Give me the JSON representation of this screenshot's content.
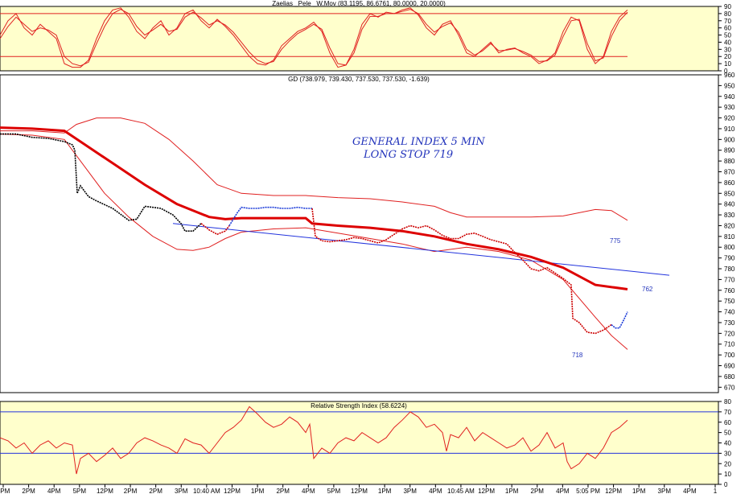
{
  "colors": {
    "panel_bg": "#ffffcc",
    "price_up": "#000000",
    "price_alt": "#1a3ad8",
    "price_red": "#cc0000",
    "band": "#e02020",
    "ma": "#dd0000",
    "trendline": "#2233dd",
    "level_line": "#2233dd",
    "annotation": "#2233bb"
  },
  "panels": {
    "stoch": {
      "title": "Zaelias _Pele _W.Mov (83.1195, 86.6761, 80.0000, 20.0000)",
      "ylim": [
        0,
        90
      ],
      "ticks": [
        "0",
        "10",
        "20",
        "30",
        "40",
        "50",
        "60",
        "70",
        "80",
        "90"
      ]
    },
    "price": {
      "title": "GD (738.979, 739.430, 737.530, 737.530, -1.639)",
      "ylim": [
        665,
        960
      ],
      "ticks": [
        "670",
        "680",
        "690",
        "700",
        "710",
        "720",
        "730",
        "740",
        "750",
        "760",
        "770",
        "780",
        "790",
        "800",
        "810",
        "820",
        "830",
        "840",
        "850",
        "860",
        "870",
        "880",
        "890",
        "900",
        "910",
        "920",
        "930",
        "940",
        "950",
        "960"
      ]
    },
    "rsi": {
      "title": "Relative Strength Index (58.6224)",
      "ylim": [
        0,
        80
      ],
      "ticks": [
        "0",
        "10",
        "20",
        "30",
        "40",
        "50",
        "60",
        "70",
        "80"
      ]
    }
  },
  "annotations": {
    "line1": "GENERAL INDEX 5 MIN",
    "line2": "LONG STOP 719",
    "label_775": "775",
    "label_762": "762",
    "label_718": "718"
  },
  "x_axis_labels": [
    "2PM",
    "2PM",
    "4PM",
    "5PM",
    "12PM",
    "2PM",
    "2PM",
    "3PM",
    "10:40 AM",
    "12PM",
    "1PM",
    "2PM",
    "4PM",
    "5PM",
    "12PM",
    "1PM",
    "3PM",
    "4PM",
    "10:45 AM",
    "12PM",
    "1PM",
    "2PM",
    "4PM",
    "5:05 PM",
    "12PM",
    "1PM",
    "3PM",
    "4PM",
    "1"
  ],
  "chart_data": [
    {
      "type": "line",
      "title": "Zaelias _Pele _W.Mov (83.1195, 86.6761, 80.0000, 20.0000)",
      "ylim": [
        0,
        90
      ],
      "levels": [
        80,
        20
      ],
      "x": [
        0,
        10,
        20,
        30,
        40,
        50,
        60,
        70,
        80,
        90,
        100,
        110,
        120,
        130,
        140,
        150,
        160,
        170,
        180,
        190,
        200,
        210,
        220,
        230,
        240,
        250,
        260,
        270,
        280,
        290,
        300,
        310,
        320,
        330,
        340,
        350,
        360,
        370,
        380,
        390,
        400,
        410,
        420,
        430,
        440,
        450,
        460,
        470,
        480,
        490,
        500,
        510,
        520,
        530,
        540,
        550,
        560,
        570,
        580,
        590,
        600,
        610,
        620,
        630,
        640,
        650,
        660,
        670,
        680,
        690,
        700,
        710,
        720,
        730,
        740,
        750,
        760,
        770,
        780
      ],
      "series": [
        {
          "values": [
            50,
            70,
            80,
            60,
            50,
            65,
            55,
            45,
            10,
            5,
            5,
            15,
            45,
            70,
            85,
            88,
            75,
            55,
            45,
            60,
            70,
            50,
            60,
            80,
            85,
            70,
            60,
            72,
            62,
            50,
            35,
            20,
            10,
            8,
            15,
            35,
            45,
            55,
            60,
            68,
            55,
            25,
            5,
            8,
            30,
            65,
            80,
            75,
            82,
            80,
            85,
            88,
            78,
            60,
            50,
            65,
            70,
            50,
            25,
            20,
            30,
            40,
            25,
            30,
            32,
            25,
            20,
            10,
            15,
            25,
            55,
            75,
            70,
            30,
            10,
            20,
            55,
            75,
            85
          ]
        },
        {
          "values": [
            45,
            62,
            75,
            65,
            55,
            60,
            57,
            50,
            20,
            10,
            7,
            12,
            38,
            62,
            80,
            86,
            80,
            62,
            50,
            57,
            65,
            55,
            58,
            75,
            82,
            74,
            64,
            70,
            64,
            54,
            40,
            26,
            15,
            10,
            13,
            30,
            42,
            52,
            58,
            65,
            58,
            32,
            10,
            8,
            25,
            58,
            76,
            76,
            80,
            80,
            83,
            86,
            80,
            65,
            54,
            62,
            67,
            54,
            30,
            22,
            28,
            38,
            28,
            29,
            31,
            27,
            22,
            13,
            14,
            22,
            48,
            70,
            72,
            38,
            14,
            18,
            48,
            70,
            82
          ]
        }
      ]
    },
    {
      "type": "line",
      "title": "GD (738.979, 739.430, 737.530, 737.530, -1.639)",
      "ylim": [
        665,
        960
      ],
      "annotations": [
        "GENERAL INDEX 5 MIN",
        "LONG STOP 719",
        "775",
        "762",
        "718"
      ],
      "price": {
        "x": [
          0,
          20,
          40,
          60,
          80,
          90,
          93,
          96,
          100,
          110,
          120,
          140,
          160,
          170,
          180,
          200,
          215,
          225,
          230,
          240,
          250,
          260,
          270,
          280,
          285,
          290,
          295,
          300,
          310,
          320,
          330,
          340,
          350,
          360,
          370,
          380,
          385,
          388,
          392,
          400,
          410,
          420,
          430,
          440,
          450,
          460,
          470,
          480,
          490,
          500,
          510,
          520,
          530,
          540,
          550,
          560,
          570,
          580,
          590,
          600,
          610,
          620,
          630,
          640,
          650,
          660,
          670,
          680,
          690,
          700,
          705,
          710,
          712,
          720,
          730,
          740,
          750,
          760,
          765,
          770,
          775,
          780
        ],
        "values": [
          905,
          905,
          902,
          901,
          898,
          895,
          890,
          850,
          857,
          847,
          843,
          836,
          825,
          826,
          838,
          836,
          830,
          822,
          815,
          815,
          822,
          816,
          812,
          815,
          820,
          826,
          832,
          837,
          836,
          836,
          837,
          837,
          836,
          836,
          837,
          836,
          836,
          836,
          810,
          806,
          805,
          806,
          807,
          809,
          808,
          806,
          804,
          807,
          812,
          817,
          820,
          818,
          820,
          816,
          811,
          808,
          808,
          812,
          813,
          810,
          807,
          805,
          803,
          795,
          788,
          780,
          778,
          781,
          776,
          771,
          768,
          765,
          734,
          730,
          721,
          720,
          723,
          728,
          725,
          725,
          732,
          740
        ]
      },
      "moving_average": {
        "x": [
          0,
          40,
          80,
          100,
          140,
          180,
          220,
          260,
          280,
          300,
          340,
          380,
          388,
          420,
          460,
          500,
          540,
          580,
          620,
          660,
          700,
          740,
          780
        ],
        "values": [
          911,
          910,
          908,
          898,
          878,
          858,
          840,
          828,
          826,
          827,
          827,
          827,
          822,
          820,
          818,
          815,
          810,
          803,
          798,
          791,
          781,
          765,
          761
        ]
      },
      "upper_band": {
        "x": [
          0,
          40,
          80,
          95,
          120,
          150,
          180,
          210,
          240,
          270,
          300,
          340,
          380,
          420,
          460,
          500,
          540,
          560,
          580,
          620,
          660,
          700,
          740,
          760,
          780
        ],
        "values": [
          908,
          908,
          906,
          914,
          920,
          920,
          915,
          900,
          880,
          858,
          850,
          848,
          848,
          846,
          845,
          842,
          838,
          832,
          828,
          828,
          828,
          829,
          835,
          834,
          825
        ]
      },
      "lower_band": {
        "x": [
          0,
          40,
          80,
          100,
          130,
          160,
          190,
          220,
          240,
          260,
          280,
          300,
          340,
          380,
          420,
          460,
          500,
          540,
          580,
          620,
          660,
          700,
          740,
          760,
          780
        ],
        "values": [
          905,
          904,
          900,
          880,
          850,
          828,
          810,
          798,
          797,
          800,
          808,
          814,
          817,
          818,
          813,
          808,
          803,
          796,
          800,
          796,
          788,
          770,
          735,
          718,
          705
        ]
      },
      "trendline": {
        "x": [
          215,
          832
        ],
        "values": [
          822,
          774
        ]
      }
    },
    {
      "type": "line",
      "title": "Relative Strength Index (58.6224)",
      "ylim": [
        0,
        80
      ],
      "levels": [
        70,
        30
      ],
      "x": [
        0,
        10,
        20,
        30,
        40,
        50,
        60,
        70,
        80,
        90,
        95,
        100,
        110,
        120,
        130,
        140,
        150,
        160,
        170,
        180,
        190,
        200,
        210,
        220,
        230,
        240,
        250,
        260,
        270,
        280,
        290,
        300,
        310,
        320,
        330,
        340,
        350,
        360,
        370,
        380,
        385,
        390,
        400,
        410,
        420,
        430,
        440,
        450,
        460,
        470,
        480,
        490,
        500,
        510,
        520,
        530,
        540,
        550,
        555,
        560,
        570,
        580,
        590,
        600,
        610,
        620,
        630,
        640,
        650,
        660,
        670,
        680,
        690,
        700,
        705,
        710,
        720,
        730,
        740,
        750,
        760,
        770,
        780
      ],
      "values": [
        45,
        42,
        35,
        40,
        30,
        38,
        42,
        35,
        40,
        38,
        10,
        25,
        30,
        22,
        28,
        35,
        25,
        30,
        40,
        45,
        42,
        38,
        35,
        30,
        44,
        40,
        38,
        30,
        40,
        50,
        55,
        62,
        75,
        68,
        60,
        55,
        58,
        65,
        60,
        50,
        58,
        25,
        35,
        30,
        40,
        45,
        42,
        50,
        45,
        40,
        45,
        55,
        62,
        70,
        65,
        55,
        58,
        50,
        32,
        48,
        45,
        55,
        42,
        50,
        45,
        40,
        35,
        38,
        45,
        32,
        38,
        50,
        35,
        40,
        22,
        15,
        20,
        30,
        25,
        35,
        50,
        55,
        62
      ]
    }
  ]
}
